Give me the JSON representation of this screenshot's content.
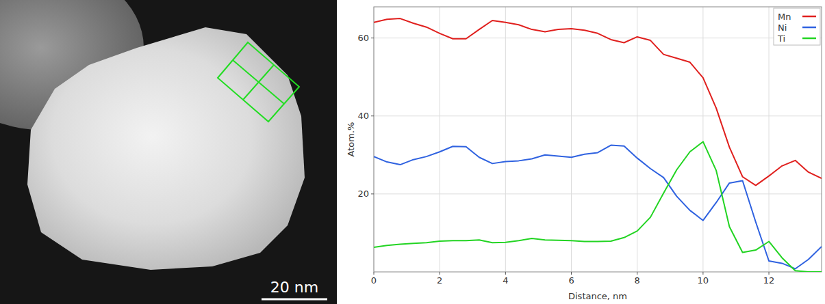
{
  "image": {
    "scale_bar_label": "20 nm"
  },
  "chart_data": {
    "type": "line",
    "x_label": "Distance, nm",
    "y_label": "Atom.%",
    "x": [
      0,
      0.4,
      0.8,
      1.2,
      1.6,
      2.0,
      2.4,
      2.8,
      3.2,
      3.6,
      4.0,
      4.4,
      4.8,
      5.2,
      5.6,
      6.0,
      6.4,
      6.8,
      7.2,
      7.6,
      8.0,
      8.4,
      8.8,
      9.2,
      9.6,
      10.0,
      10.4,
      10.8,
      11.2,
      11.6,
      12.0,
      12.4,
      12.8,
      13.2,
      13.6
    ],
    "series": [
      {
        "name": "Mn",
        "color": "#e0201e",
        "values": [
          64,
          64.8,
          65,
          63.8,
          62.8,
          61.2,
          59.8,
          59.8,
          62.2,
          64.5,
          64,
          63.4,
          62.2,
          61.6,
          62.2,
          62.4,
          62,
          61.2,
          59.6,
          58.8,
          60.3,
          59.4,
          55.8,
          54.8,
          53.8,
          49.8,
          42,
          32,
          24.4,
          22.2,
          24.6,
          27.2,
          28.6,
          25.6,
          24
        ]
      },
      {
        "name": "Ni",
        "color": "#2f62e0",
        "values": [
          29.6,
          28.2,
          27.5,
          28.8,
          29.6,
          30.8,
          32.2,
          32.1,
          29.4,
          27.8,
          28.3,
          28.5,
          29,
          30,
          29.7,
          29.4,
          30.2,
          30.6,
          32.5,
          32.3,
          29.2,
          26.5,
          24.2,
          19.4,
          15.8,
          13.2,
          17.8,
          22.8,
          23.4,
          12.8,
          2.8,
          2.2,
          0.8,
          3.2,
          6.5
        ]
      },
      {
        "name": "Ti",
        "color": "#22d422",
        "values": [
          6.3,
          6.8,
          7.1,
          7.3,
          7.5,
          7.9,
          8,
          8,
          8.2,
          7.5,
          7.6,
          8,
          8.6,
          8.2,
          8.1,
          8,
          7.8,
          7.8,
          7.9,
          8.8,
          10.5,
          14,
          20.2,
          26.2,
          30.8,
          33.4,
          26,
          11.6,
          5,
          5.6,
          7.8,
          3.6,
          0.3,
          0,
          0
        ]
      }
    ],
    "xlim": [
      0,
      13.6
    ],
    "xticks": [
      0,
      2,
      4,
      6,
      8,
      10,
      12
    ],
    "ylim": [
      0,
      68
    ],
    "yticks": [
      20,
      40,
      60
    ],
    "grid": true,
    "legend": "top-right"
  }
}
